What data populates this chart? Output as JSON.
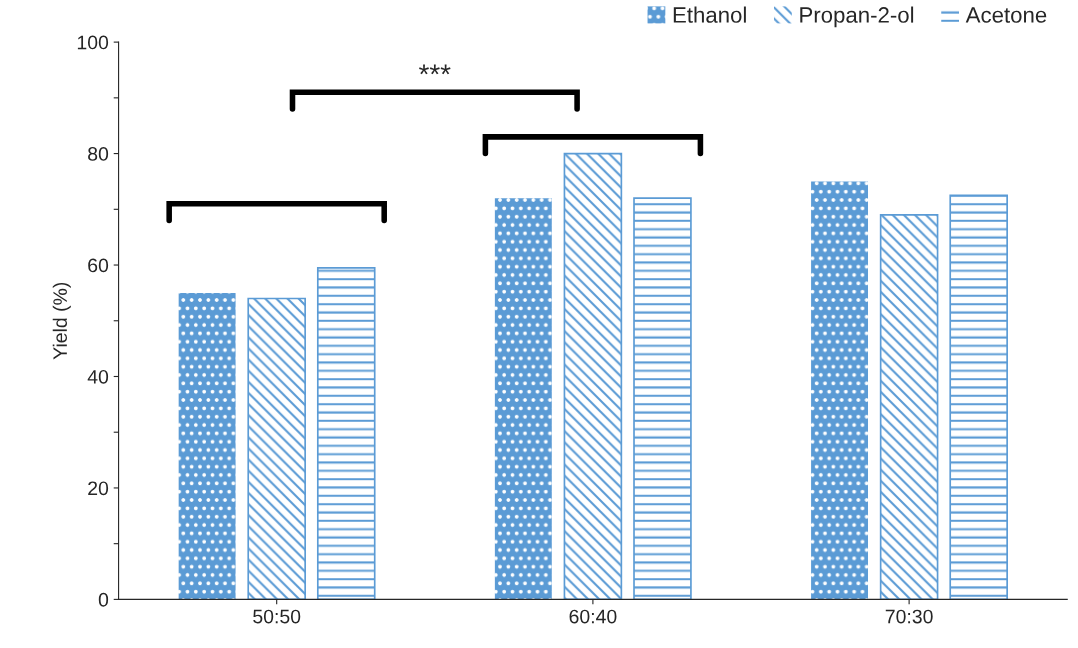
{
  "chart_data": {
    "type": "bar",
    "ylabel": "Yield (%)",
    "categories": [
      "50:50",
      "60:40",
      "70:30"
    ],
    "series": [
      {
        "name": "Ethanol",
        "color": "#5b9bd5",
        "values": [
          55,
          72,
          75
        ]
      },
      {
        "name": "Propan-2-ol",
        "color": "#5b9bd5",
        "values": [
          54,
          80,
          69
        ]
      },
      {
        "name": "Acetone",
        "color": "#5b9bd5",
        "values": [
          59.5,
          72,
          72.5
        ]
      }
    ],
    "ylim": [
      0,
      100
    ],
    "yticks": [
      0,
      {
        "value": 10,
        "label": null
      },
      20,
      {
        "value": 30,
        "label": null
      },
      40,
      {
        "value": 50,
        "label": null
      },
      60,
      {
        "value": 70,
        "label": null
      },
      80,
      {
        "value": 90,
        "label": null
      },
      100
    ],
    "annotations": [
      "***"
    ],
    "legend": "top right",
    "grid": false
  }
}
